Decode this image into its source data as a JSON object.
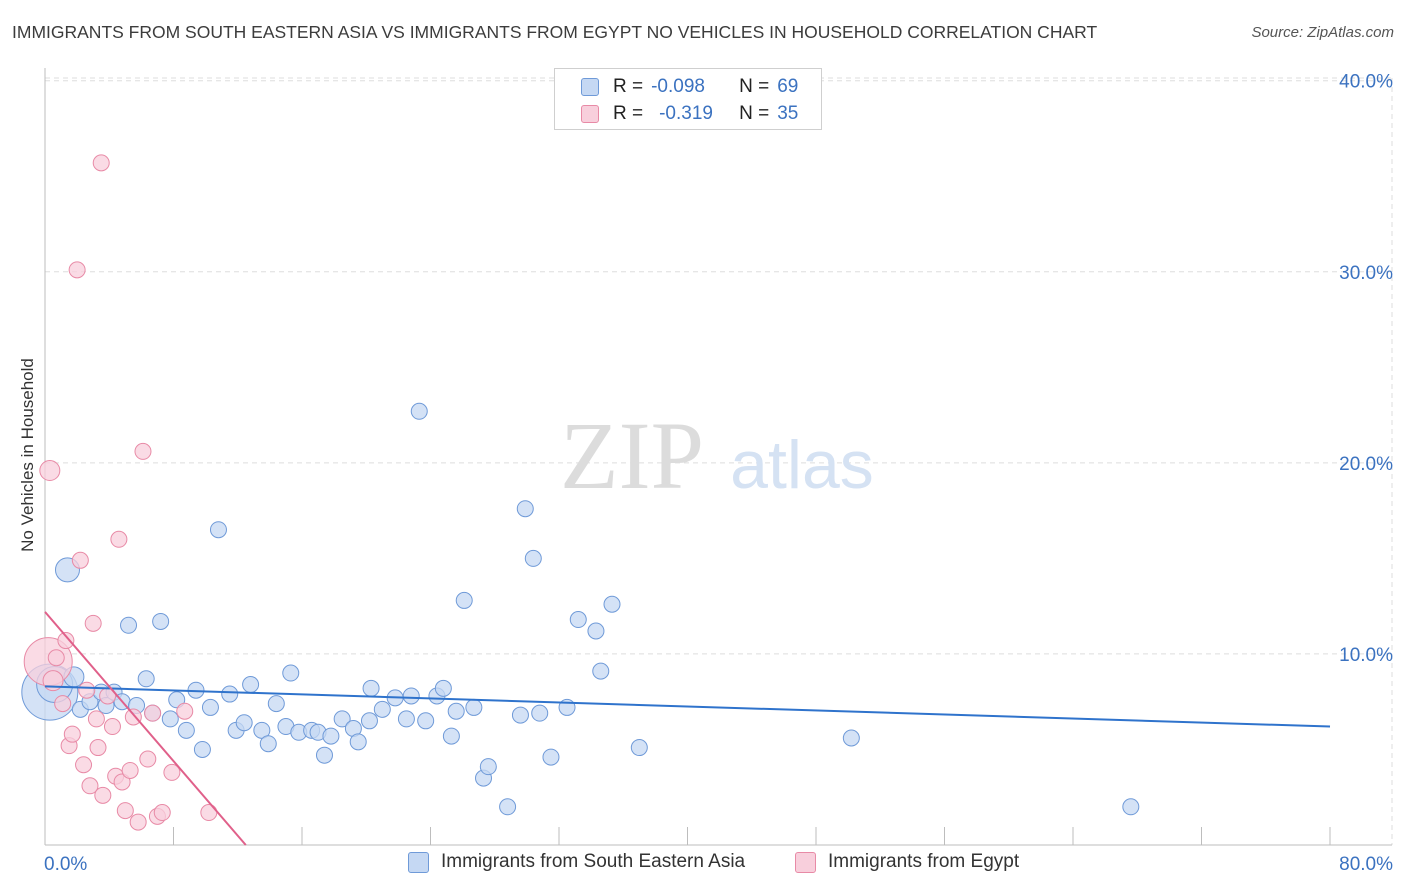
{
  "title": "IMMIGRANTS FROM SOUTH EASTERN ASIA VS IMMIGRANTS FROM EGYPT NO VEHICLES IN HOUSEHOLD CORRELATION CHART",
  "source": "Source: ZipAtlas.com",
  "watermark": {
    "zip": "ZIP",
    "atlas": "atlas"
  },
  "legend": {
    "r_label": "R =",
    "n_label": "N =",
    "series1": {
      "r": "-0.098",
      "n": "69"
    },
    "series2": {
      "r": "-0.319",
      "n": "35"
    }
  },
  "colors": {
    "blue_fill": "#c5d8f3",
    "blue_stroke": "#6f9ad8",
    "blue_line": "#2f73cc",
    "pink_fill": "#f8cfdc",
    "pink_stroke": "#e88aa6",
    "pink_line": "#e0608a",
    "axis_label": "#3b72c0"
  },
  "chart_data": {
    "type": "scatter",
    "title": "IMMIGRANTS FROM SOUTH EASTERN ASIA VS IMMIGRANTS FROM EGYPT NO VEHICLES IN HOUSEHOLD CORRELATION CHART",
    "xlabel": "",
    "ylabel": "No Vehicles in Household",
    "xlim": [
      0,
      80
    ],
    "ylim": [
      0,
      41
    ],
    "x_tick_labels": [
      "0.0%",
      "80.0%"
    ],
    "y_ticks": [
      10,
      20,
      30,
      40
    ],
    "y_tick_labels": [
      "10.0%",
      "20.0%",
      "30.0%",
      "40.0%"
    ],
    "grid": true,
    "series": [
      {
        "name": "Immigrants from South Eastern Asia",
        "color": "#6f9ad8",
        "trend": {
          "x0": 0,
          "y0": 8.3,
          "x1": 80,
          "y1": 6.2
        },
        "points": [
          [
            0.3,
            8.0,
            28
          ],
          [
            0.6,
            8.4,
            18
          ],
          [
            1.4,
            14.4,
            12
          ],
          [
            1.8,
            8.8,
            10
          ],
          [
            2.2,
            7.1,
            8
          ],
          [
            2.8,
            7.5,
            8
          ],
          [
            3.5,
            8.0,
            8
          ],
          [
            3.8,
            7.3,
            8
          ],
          [
            4.3,
            8.0,
            8
          ],
          [
            4.8,
            7.5,
            8
          ],
          [
            5.2,
            11.5,
            8
          ],
          [
            5.7,
            7.3,
            8
          ],
          [
            6.3,
            8.7,
            8
          ],
          [
            6.7,
            6.9,
            8
          ],
          [
            7.2,
            11.7,
            8
          ],
          [
            7.8,
            6.6,
            8
          ],
          [
            8.2,
            7.6,
            8
          ],
          [
            8.8,
            6.0,
            8
          ],
          [
            9.4,
            8.1,
            8
          ],
          [
            9.8,
            5.0,
            8
          ],
          [
            10.3,
            7.2,
            8
          ],
          [
            10.8,
            16.5,
            8
          ],
          [
            11.5,
            7.9,
            8
          ],
          [
            11.9,
            6.0,
            8
          ],
          [
            12.4,
            6.4,
            8
          ],
          [
            12.8,
            8.4,
            8
          ],
          [
            13.5,
            6.0,
            8
          ],
          [
            13.9,
            5.3,
            8
          ],
          [
            14.4,
            7.4,
            8
          ],
          [
            15.0,
            6.2,
            8
          ],
          [
            15.3,
            9.0,
            8
          ],
          [
            15.8,
            5.9,
            8
          ],
          [
            16.6,
            6.0,
            8
          ],
          [
            17.0,
            5.9,
            8
          ],
          [
            17.4,
            4.7,
            8
          ],
          [
            17.8,
            5.7,
            8
          ],
          [
            18.5,
            6.6,
            8
          ],
          [
            19.2,
            6.1,
            8
          ],
          [
            19.5,
            5.4,
            8
          ],
          [
            20.2,
            6.5,
            8
          ],
          [
            20.3,
            8.2,
            8
          ],
          [
            21.0,
            7.1,
            8
          ],
          [
            21.8,
            7.7,
            8
          ],
          [
            22.5,
            6.6,
            8
          ],
          [
            22.8,
            7.8,
            8
          ],
          [
            23.3,
            22.7,
            8
          ],
          [
            23.7,
            6.5,
            8
          ],
          [
            24.4,
            7.8,
            8
          ],
          [
            24.8,
            8.2,
            8
          ],
          [
            25.3,
            5.7,
            8
          ],
          [
            25.6,
            7.0,
            8
          ],
          [
            26.1,
            12.8,
            8
          ],
          [
            26.7,
            7.2,
            8
          ],
          [
            27.3,
            3.5,
            8
          ],
          [
            27.6,
            4.1,
            8
          ],
          [
            28.8,
            2.0,
            8
          ],
          [
            29.6,
            6.8,
            8
          ],
          [
            29.9,
            17.6,
            8
          ],
          [
            30.4,
            15.0,
            8
          ],
          [
            30.8,
            6.9,
            8
          ],
          [
            31.5,
            4.6,
            8
          ],
          [
            32.5,
            7.2,
            8
          ],
          [
            33.2,
            11.8,
            8
          ],
          [
            34.3,
            11.2,
            8
          ],
          [
            34.6,
            9.1,
            8
          ],
          [
            35.3,
            12.6,
            8
          ],
          [
            37.0,
            5.1,
            8
          ],
          [
            50.2,
            5.6,
            8
          ],
          [
            67.6,
            2.0,
            8
          ]
        ]
      },
      {
        "name": "Immigrants from Egypt",
        "color": "#e88aa6",
        "trend": {
          "x0": 0,
          "y0": 12.2,
          "x1": 12.5,
          "y1": 0
        },
        "points": [
          [
            0.2,
            9.6,
            24
          ],
          [
            0.3,
            19.6,
            10
          ],
          [
            0.5,
            8.6,
            10
          ],
          [
            0.7,
            9.8,
            8
          ],
          [
            1.1,
            7.4,
            8
          ],
          [
            1.3,
            10.7,
            8
          ],
          [
            1.5,
            5.2,
            8
          ],
          [
            1.7,
            5.8,
            8
          ],
          [
            2.0,
            30.1,
            8
          ],
          [
            2.2,
            14.9,
            8
          ],
          [
            2.4,
            4.2,
            8
          ],
          [
            2.6,
            8.1,
            8
          ],
          [
            2.8,
            3.1,
            8
          ],
          [
            3.0,
            11.6,
            8
          ],
          [
            3.2,
            6.6,
            8
          ],
          [
            3.3,
            5.1,
            8
          ],
          [
            3.5,
            35.7,
            8
          ],
          [
            3.6,
            2.6,
            8
          ],
          [
            3.9,
            7.8,
            8
          ],
          [
            4.2,
            6.2,
            8
          ],
          [
            4.4,
            3.6,
            8
          ],
          [
            4.6,
            16.0,
            8
          ],
          [
            4.8,
            3.3,
            8
          ],
          [
            5.0,
            1.8,
            8
          ],
          [
            5.3,
            3.9,
            8
          ],
          [
            5.5,
            6.7,
            8
          ],
          [
            5.8,
            1.2,
            8
          ],
          [
            6.1,
            20.6,
            8
          ],
          [
            6.4,
            4.5,
            8
          ],
          [
            6.7,
            6.9,
            8
          ],
          [
            7.0,
            1.5,
            8
          ],
          [
            7.3,
            1.7,
            8
          ],
          [
            7.9,
            3.8,
            8
          ],
          [
            8.7,
            7.0,
            8
          ],
          [
            10.2,
            1.7,
            8
          ]
        ]
      }
    ]
  }
}
